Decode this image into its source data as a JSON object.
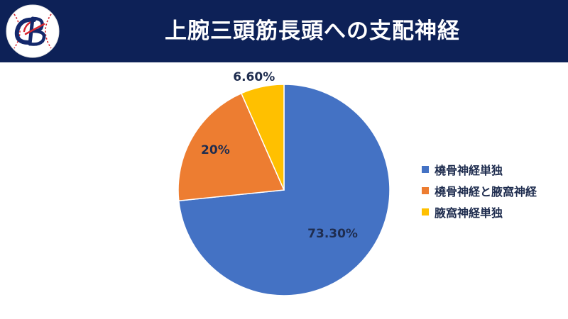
{
  "header": {
    "title": "上腕三頭筋長頭への支配神経",
    "logo_text": "CB"
  },
  "colors": {
    "header_bg": "#0d2157",
    "logo_red": "#d6262f",
    "logo_navy": "#14286b"
  },
  "chart_data": {
    "type": "pie",
    "title": "",
    "start_angle_deg": 0,
    "direction": "clockwise",
    "slices": [
      {
        "name": "橈骨神経単独",
        "value": 73.3,
        "label": "73.30%",
        "color": "#4472c4"
      },
      {
        "name": "橈骨神経と腋窩神経",
        "value": 20,
        "label": "20%",
        "color": "#ed7d31"
      },
      {
        "name": "腋窩神経単独",
        "value": 6.6,
        "label": "6.60%",
        "color": "#ffc000"
      }
    ],
    "legend_position": "right"
  }
}
